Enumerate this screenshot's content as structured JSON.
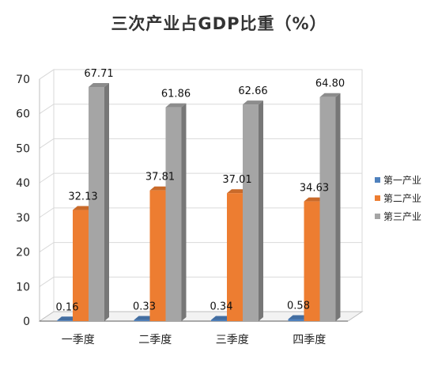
{
  "chart_data": {
    "type": "bar",
    "title": "三次产业占GDP比重（%）",
    "categories": [
      "一季度",
      "二季度",
      "三季度",
      "四季度"
    ],
    "series": [
      {
        "name": "第一产业",
        "values": [
          0.16,
          0.33,
          0.34,
          0.58
        ],
        "labels": [
          "0.16",
          "0.33",
          "0.34",
          "0.58"
        ],
        "color": "#4f81bd"
      },
      {
        "name": "第二产业",
        "values": [
          32.13,
          37.81,
          37.01,
          34.63
        ],
        "labels": [
          "32.13",
          "37.81",
          "37.01",
          "34.63"
        ],
        "color": "#ed7d31"
      },
      {
        "name": "第三产业",
        "values": [
          67.71,
          61.86,
          62.66,
          64.8
        ],
        "labels": [
          "67.71",
          "61.86",
          "62.66",
          "64.80"
        ],
        "color": "#a5a5a5"
      }
    ],
    "yticks": [
      "0",
      "10",
      "20",
      "30",
      "40",
      "50",
      "60",
      "70"
    ],
    "ylim": [
      0,
      70
    ],
    "xlabel": "",
    "ylabel": "",
    "grid": true,
    "legend": "right"
  }
}
